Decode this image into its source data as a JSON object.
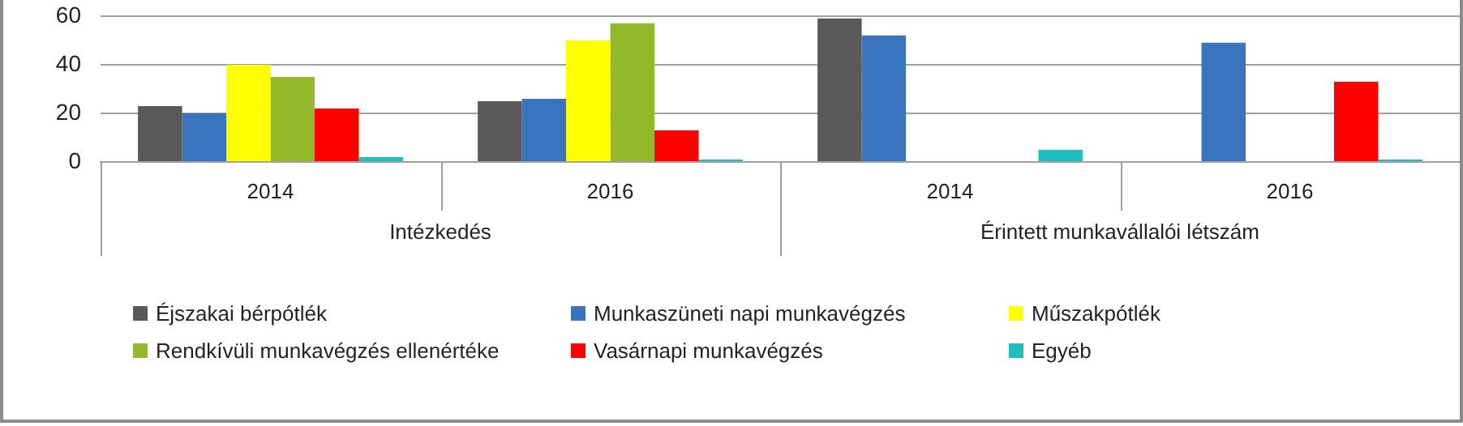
{
  "chart_data": {
    "type": "bar",
    "categories": [
      "2014",
      "2016",
      "2014",
      "2016"
    ],
    "annotations": [
      "Intézkedés",
      "Érintett munkavállalói létszám"
    ],
    "series": [
      {
        "name": "Éjszakai bérpótlék",
        "color": "#595959",
        "values": [
          23,
          25,
          59,
          null
        ]
      },
      {
        "name": "Munkaszüneti napi munkavégzés",
        "color": "#3a73be",
        "values": [
          20,
          26,
          52,
          49
        ]
      },
      {
        "name": "Műszakpótlék",
        "color": "#ffff00",
        "values": [
          40,
          50,
          null,
          null
        ]
      },
      {
        "name": "Rendkívüli munkavégzés ellenértéke",
        "color": "#93b92a",
        "values": [
          35,
          57,
          null,
          null
        ]
      },
      {
        "name": "Vasárnapi munkavégzés",
        "color": "#ff0000",
        "values": [
          22,
          13,
          null,
          33
        ]
      },
      {
        "name": "Egyéb",
        "color": "#1dbfbf",
        "values": [
          2,
          1,
          5,
          1
        ]
      }
    ],
    "ylim": [
      0,
      65
    ],
    "yticks": [
      0,
      20,
      40,
      60
    ],
    "grid": "y",
    "legend": "bottom"
  }
}
